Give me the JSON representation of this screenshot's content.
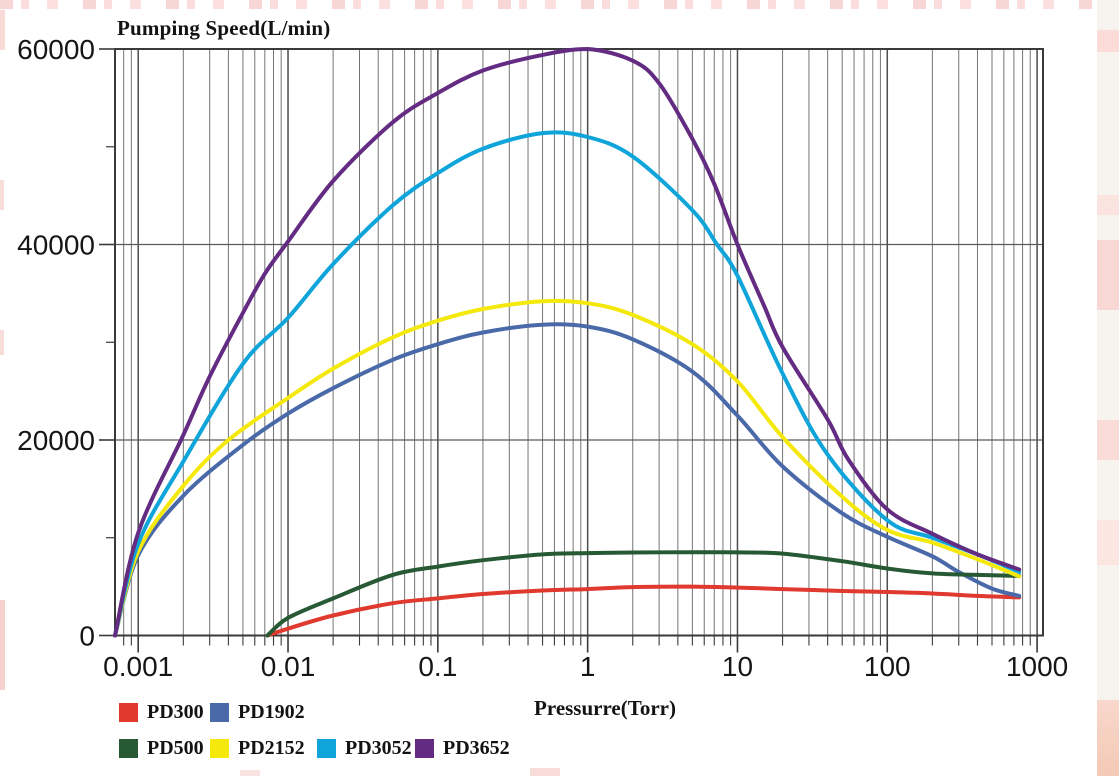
{
  "chart_data": {
    "type": "line",
    "title": "",
    "ylabel": "Pumping Speed(L/min)",
    "xlabel": "Pressurre(Torr)",
    "x_scale": "log",
    "x_range": [
      0.0007,
      1095
    ],
    "y_range": [
      0,
      60000
    ],
    "x_ticks_major": [
      0.001,
      0.01,
      0.1,
      1,
      10,
      100,
      1000
    ],
    "x_tick_labels": [
      "0.001",
      "0.01",
      "0.1",
      "1",
      "10",
      "100",
      "1000"
    ],
    "y_ticks_major": [
      0,
      20000,
      40000,
      60000
    ],
    "y_tick_labels": [
      "0",
      "20000",
      "40000",
      "60000"
    ],
    "y_ticks_minor": [
      10000,
      30000,
      50000
    ],
    "y_gridlines": [
      20000,
      40000
    ],
    "grid": "log-minor-vertical",
    "legend_position": "bottom-left",
    "legend_rows": [
      [
        "PD300",
        "PD1902"
      ],
      [
        "PD500",
        "PD2152",
        "PD3052",
        "PD3652"
      ]
    ],
    "series": [
      {
        "name": "PD300",
        "color": "#E0392E",
        "points": [
          [
            0.0073,
            0
          ],
          [
            0.01,
            700
          ],
          [
            0.02,
            2050
          ],
          [
            0.05,
            3300
          ],
          [
            0.1,
            3800
          ],
          [
            0.2,
            4250
          ],
          [
            0.5,
            4600
          ],
          [
            1,
            4750
          ],
          [
            2,
            4950
          ],
          [
            5,
            5000
          ],
          [
            10,
            4900
          ],
          [
            20,
            4750
          ],
          [
            50,
            4550
          ],
          [
            100,
            4450
          ],
          [
            200,
            4300
          ],
          [
            400,
            4050
          ],
          [
            760,
            3900
          ]
        ]
      },
      {
        "name": "PD1902",
        "color": "#4A69A8",
        "points": [
          [
            0.0007,
            0
          ],
          [
            0.001,
            8200
          ],
          [
            0.002,
            14300
          ],
          [
            0.005,
            19500
          ],
          [
            0.01,
            22700
          ],
          [
            0.02,
            25300
          ],
          [
            0.05,
            28200
          ],
          [
            0.1,
            29800
          ],
          [
            0.2,
            31000
          ],
          [
            0.5,
            31800
          ],
          [
            1,
            31600
          ],
          [
            2,
            30300
          ],
          [
            5,
            27000
          ],
          [
            10,
            22500
          ],
          [
            20,
            17300
          ],
          [
            50,
            12500
          ],
          [
            100,
            10100
          ],
          [
            200,
            8100
          ],
          [
            300,
            6500
          ],
          [
            500,
            4800
          ],
          [
            760,
            4050
          ]
        ]
      },
      {
        "name": "PD500",
        "color": "#265934",
        "points": [
          [
            0.0073,
            0
          ],
          [
            0.01,
            1800
          ],
          [
            0.02,
            3800
          ],
          [
            0.05,
            6200
          ],
          [
            0.1,
            7050
          ],
          [
            0.2,
            7700
          ],
          [
            0.5,
            8300
          ],
          [
            1,
            8430
          ],
          [
            2,
            8490
          ],
          [
            5,
            8520
          ],
          [
            10,
            8500
          ],
          [
            20,
            8380
          ],
          [
            50,
            7600
          ],
          [
            100,
            6850
          ],
          [
            200,
            6350
          ],
          [
            400,
            6200
          ],
          [
            760,
            6100
          ]
        ]
      },
      {
        "name": "PD2152",
        "color": "#F4E80C",
        "points": [
          [
            0.0007,
            0
          ],
          [
            0.001,
            8600
          ],
          [
            0.002,
            15300
          ],
          [
            0.004,
            20000
          ],
          [
            0.01,
            24300
          ],
          [
            0.02,
            27300
          ],
          [
            0.05,
            30500
          ],
          [
            0.1,
            32200
          ],
          [
            0.2,
            33400
          ],
          [
            0.5,
            34200
          ],
          [
            1,
            34000
          ],
          [
            2,
            32800
          ],
          [
            5,
            29800
          ],
          [
            10,
            26000
          ],
          [
            20,
            20300
          ],
          [
            50,
            14200
          ],
          [
            100,
            10800
          ],
          [
            200,
            9500
          ],
          [
            400,
            7800
          ],
          [
            760,
            6050
          ]
        ]
      },
      {
        "name": "PD3052",
        "color": "#0FA4DA",
        "points": [
          [
            0.0007,
            0
          ],
          [
            0.001,
            9400
          ],
          [
            0.002,
            17800
          ],
          [
            0.005,
            27800
          ],
          [
            0.01,
            32500
          ],
          [
            0.02,
            38000
          ],
          [
            0.05,
            44000
          ],
          [
            0.1,
            47300
          ],
          [
            0.2,
            49800
          ],
          [
            0.5,
            51400
          ],
          [
            1,
            51000
          ],
          [
            2,
            49000
          ],
          [
            5,
            43500
          ],
          [
            7.3,
            40000
          ],
          [
            10,
            36800
          ],
          [
            20,
            26800
          ],
          [
            40,
            18500
          ],
          [
            100,
            11800
          ],
          [
            200,
            10000
          ],
          [
            400,
            8300
          ],
          [
            760,
            6500
          ]
        ]
      },
      {
        "name": "PD3652",
        "color": "#632B82",
        "points": [
          [
            0.0007,
            0
          ],
          [
            0.001,
            10500
          ],
          [
            0.002,
            20500
          ],
          [
            0.003,
            26500
          ],
          [
            0.005,
            33000
          ],
          [
            0.007,
            37000
          ],
          [
            0.01,
            40300
          ],
          [
            0.02,
            46500
          ],
          [
            0.05,
            52500
          ],
          [
            0.1,
            55500
          ],
          [
            0.2,
            57800
          ],
          [
            0.5,
            59400
          ],
          [
            1,
            60000
          ],
          [
            2,
            58800
          ],
          [
            3,
            56500
          ],
          [
            5,
            50800
          ],
          [
            7,
            46200
          ],
          [
            10,
            40000
          ],
          [
            15,
            33800
          ],
          [
            20,
            29500
          ],
          [
            40,
            22100
          ],
          [
            55,
            18000
          ],
          [
            100,
            12900
          ],
          [
            200,
            10400
          ],
          [
            400,
            8300
          ],
          [
            760,
            6750
          ]
        ]
      }
    ]
  },
  "style_colors": {
    "grid_minor": "#757575",
    "grid_major": "#4d4d4d",
    "axis": "#3a3a3a",
    "text": "#161616"
  }
}
